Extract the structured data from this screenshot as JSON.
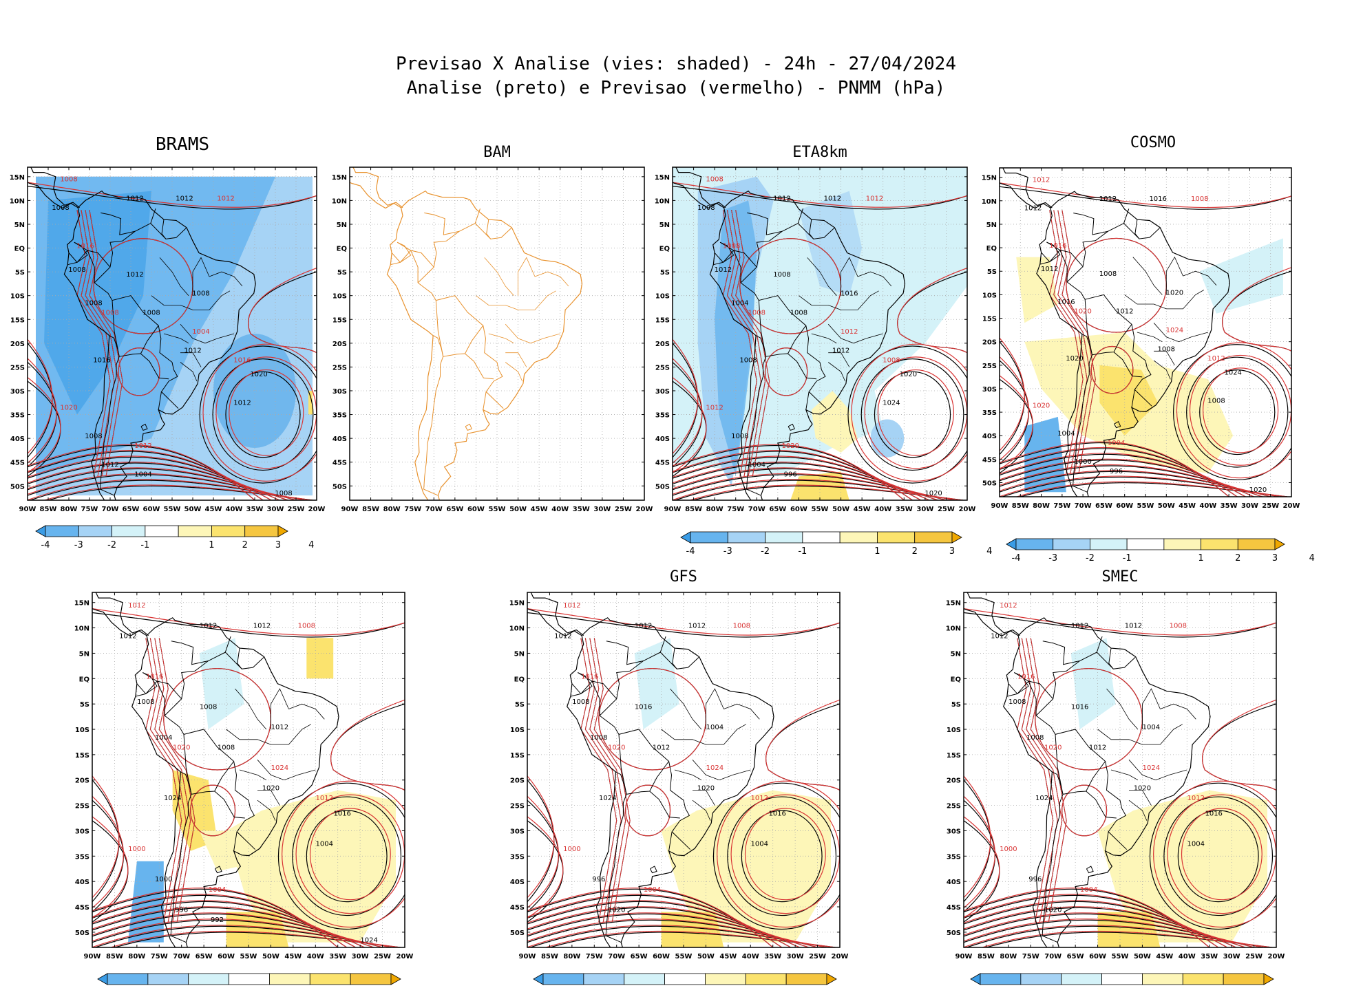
{
  "chart_data": {
    "type": "heatmap",
    "title_line1": "Previsao X Analise (vies: shaded) - 24h - 27/04/2024",
    "title_line2": "Analise (preto) e Previsao (vermelho) - PNMM (hPa)",
    "colors": {
      "analysis_contour": "#000000",
      "forecast_contour": "#d93535",
      "map_outline_bam": "#e8922e",
      "grid": "#aaaaaa"
    },
    "lon_ticks": [
      "90W",
      "85W",
      "80W",
      "75W",
      "70W",
      "65W",
      "60W",
      "55W",
      "50W",
      "45W",
      "40W",
      "35W",
      "30W",
      "25W",
      "20W"
    ],
    "lat_ticks": [
      "15N",
      "10N",
      "5N",
      "EQ",
      "5S",
      "10S",
      "15S",
      "20S",
      "25S",
      "30S",
      "35S",
      "40S",
      "45S",
      "50S"
    ],
    "colorbar": {
      "labels": [
        "-4",
        "-3",
        "-2",
        "-1",
        "1",
        "2",
        "3",
        "4"
      ],
      "colors": [
        "#3a9ce6",
        "#67b4ee",
        "#a6d3f5",
        "#d4f2f8",
        "#ffffff",
        "#fdf6b8",
        "#fbe36e",
        "#f5c640",
        "#f0a800"
      ]
    },
    "panels": [
      {
        "name": "BRAMS",
        "bias": -2.6,
        "labels_black": [
          "1008",
          "1012",
          "1012",
          "1008",
          "1012",
          "1008",
          "1008",
          "1008",
          "1012",
          "1016",
          "1020",
          "1012",
          "1008",
          "1012",
          "1004",
          "1008"
        ],
        "labels_red": [
          "1008",
          "1012",
          "1016",
          "1008",
          "1004",
          "1016",
          "1012",
          "1020"
        ]
      },
      {
        "name": "BAM",
        "bias": 0,
        "labels_black": [],
        "labels_red": []
      },
      {
        "name": "ETA8km",
        "bias": -1.3,
        "labels_black": [
          "1008",
          "1012",
          "1012",
          "1012",
          "1008",
          "1016",
          "1004",
          "1008",
          "1012",
          "1008",
          "1020",
          "1024",
          "1008",
          "1004",
          "996",
          "1020"
        ],
        "labels_red": [
          "1008",
          "1012",
          "1008",
          "1008",
          "1012",
          "1008",
          "1020",
          "1012"
        ]
      },
      {
        "name": "COSMO",
        "bias": 0.3,
        "labels_black": [
          "1012",
          "1012",
          "1016",
          "1012",
          "1008",
          "1020",
          "1016",
          "1012",
          "1008",
          "1020",
          "1024",
          "1008",
          "1004",
          "1000",
          "996",
          "1020"
        ],
        "labels_red": [
          "1012",
          "1008",
          "1016",
          "1020",
          "1024",
          "1012",
          "1004",
          "1020"
        ]
      },
      {
        "name": "",
        "bias": 0.8,
        "labels_black": [
          "1012",
          "1012",
          "1012",
          "1008",
          "1008",
          "1012",
          "1004",
          "1008",
          "1020",
          "1024",
          "1016",
          "1004",
          "1000",
          "996",
          "992",
          "1024"
        ],
        "labels_red": [
          "1012",
          "1008",
          "1016",
          "1020",
          "1024",
          "1012",
          "1004",
          "1000"
        ]
      },
      {
        "name": "GFS",
        "bias": 0.9,
        "labels_black": [
          "1012",
          "1012",
          "1012",
          "1008",
          "1016",
          "1004",
          "1008",
          "1012",
          "1020",
          "1024",
          "1016",
          "1004",
          "996",
          "1020"
        ],
        "labels_red": [
          "1012",
          "1008",
          "1016",
          "1020",
          "1024",
          "1012",
          "1004",
          "1000"
        ]
      },
      {
        "name": "SMEC",
        "bias": 0.5,
        "labels_black": [
          "1012",
          "1012",
          "1012",
          "1008",
          "1016",
          "1004",
          "1008",
          "1012",
          "1020",
          "1024",
          "1016",
          "1004",
          "996",
          "1020"
        ],
        "labels_red": [
          "1012",
          "1008",
          "1016",
          "1020",
          "1024",
          "1012",
          "1004",
          "1000"
        ]
      }
    ]
  }
}
